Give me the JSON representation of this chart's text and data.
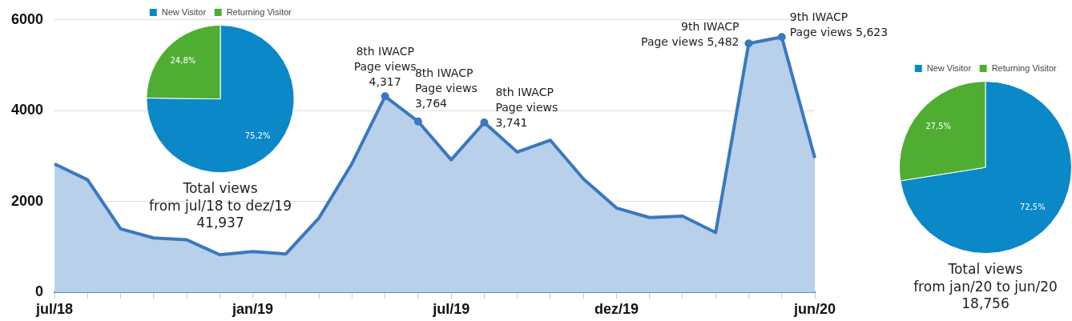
{
  "chart_data": [
    {
      "type": "area",
      "categories": [
        "jul/18",
        null,
        null,
        null,
        null,
        null,
        "jan/19",
        null,
        null,
        null,
        null,
        null,
        "jul/19",
        null,
        null,
        null,
        null,
        "dez/19",
        null,
        null,
        null,
        null,
        null,
        "jun/20"
      ],
      "series": [
        {
          "color": "#3a78c0",
          "values": [
            2830,
            2480,
            1400,
            1200,
            1160,
            830,
            900,
            850,
            1640,
            2840,
            4317,
            3764,
            2920,
            3741,
            3090,
            3350,
            2500,
            1860,
            1650,
            1680,
            1320,
            5482,
            5623,
            2960
          ]
        }
      ],
      "ylim": [
        0,
        6000
      ],
      "yticks": [
        0,
        2000,
        4000,
        6000
      ],
      "grid": "y",
      "legend": false,
      "annotations": [
        "8th IWACP\nPage views\n4,317",
        "8th IWACP\nPage views\n3,764",
        "8th IWACP\nPage views\n3,741",
        "9th IWACP\nPage views 5,482",
        "9th IWACP\nPage views 5,623"
      ]
    },
    {
      "type": "pie",
      "title": "Total views\nfrom jul/18 to dez/19\n41,937",
      "categories": [
        "New Visitor",
        "Returning Visitor"
      ],
      "values": [
        75.2,
        24.8
      ],
      "colors": [
        "#0a88c8",
        "#4fae32"
      ],
      "value_labels": [
        "75,2%",
        "24,8%"
      ],
      "legend": "top"
    },
    {
      "type": "pie",
      "title": "Total views\nfrom jan/20 to jun/20\n18,756",
      "categories": [
        "New Visitor",
        "Returning Visitor"
      ],
      "values": [
        72.5,
        27.5
      ],
      "colors": [
        "#0a88c8",
        "#4fae32"
      ],
      "value_labels": [
        "72,5%",
        "27,5%"
      ],
      "legend": "top"
    }
  ]
}
